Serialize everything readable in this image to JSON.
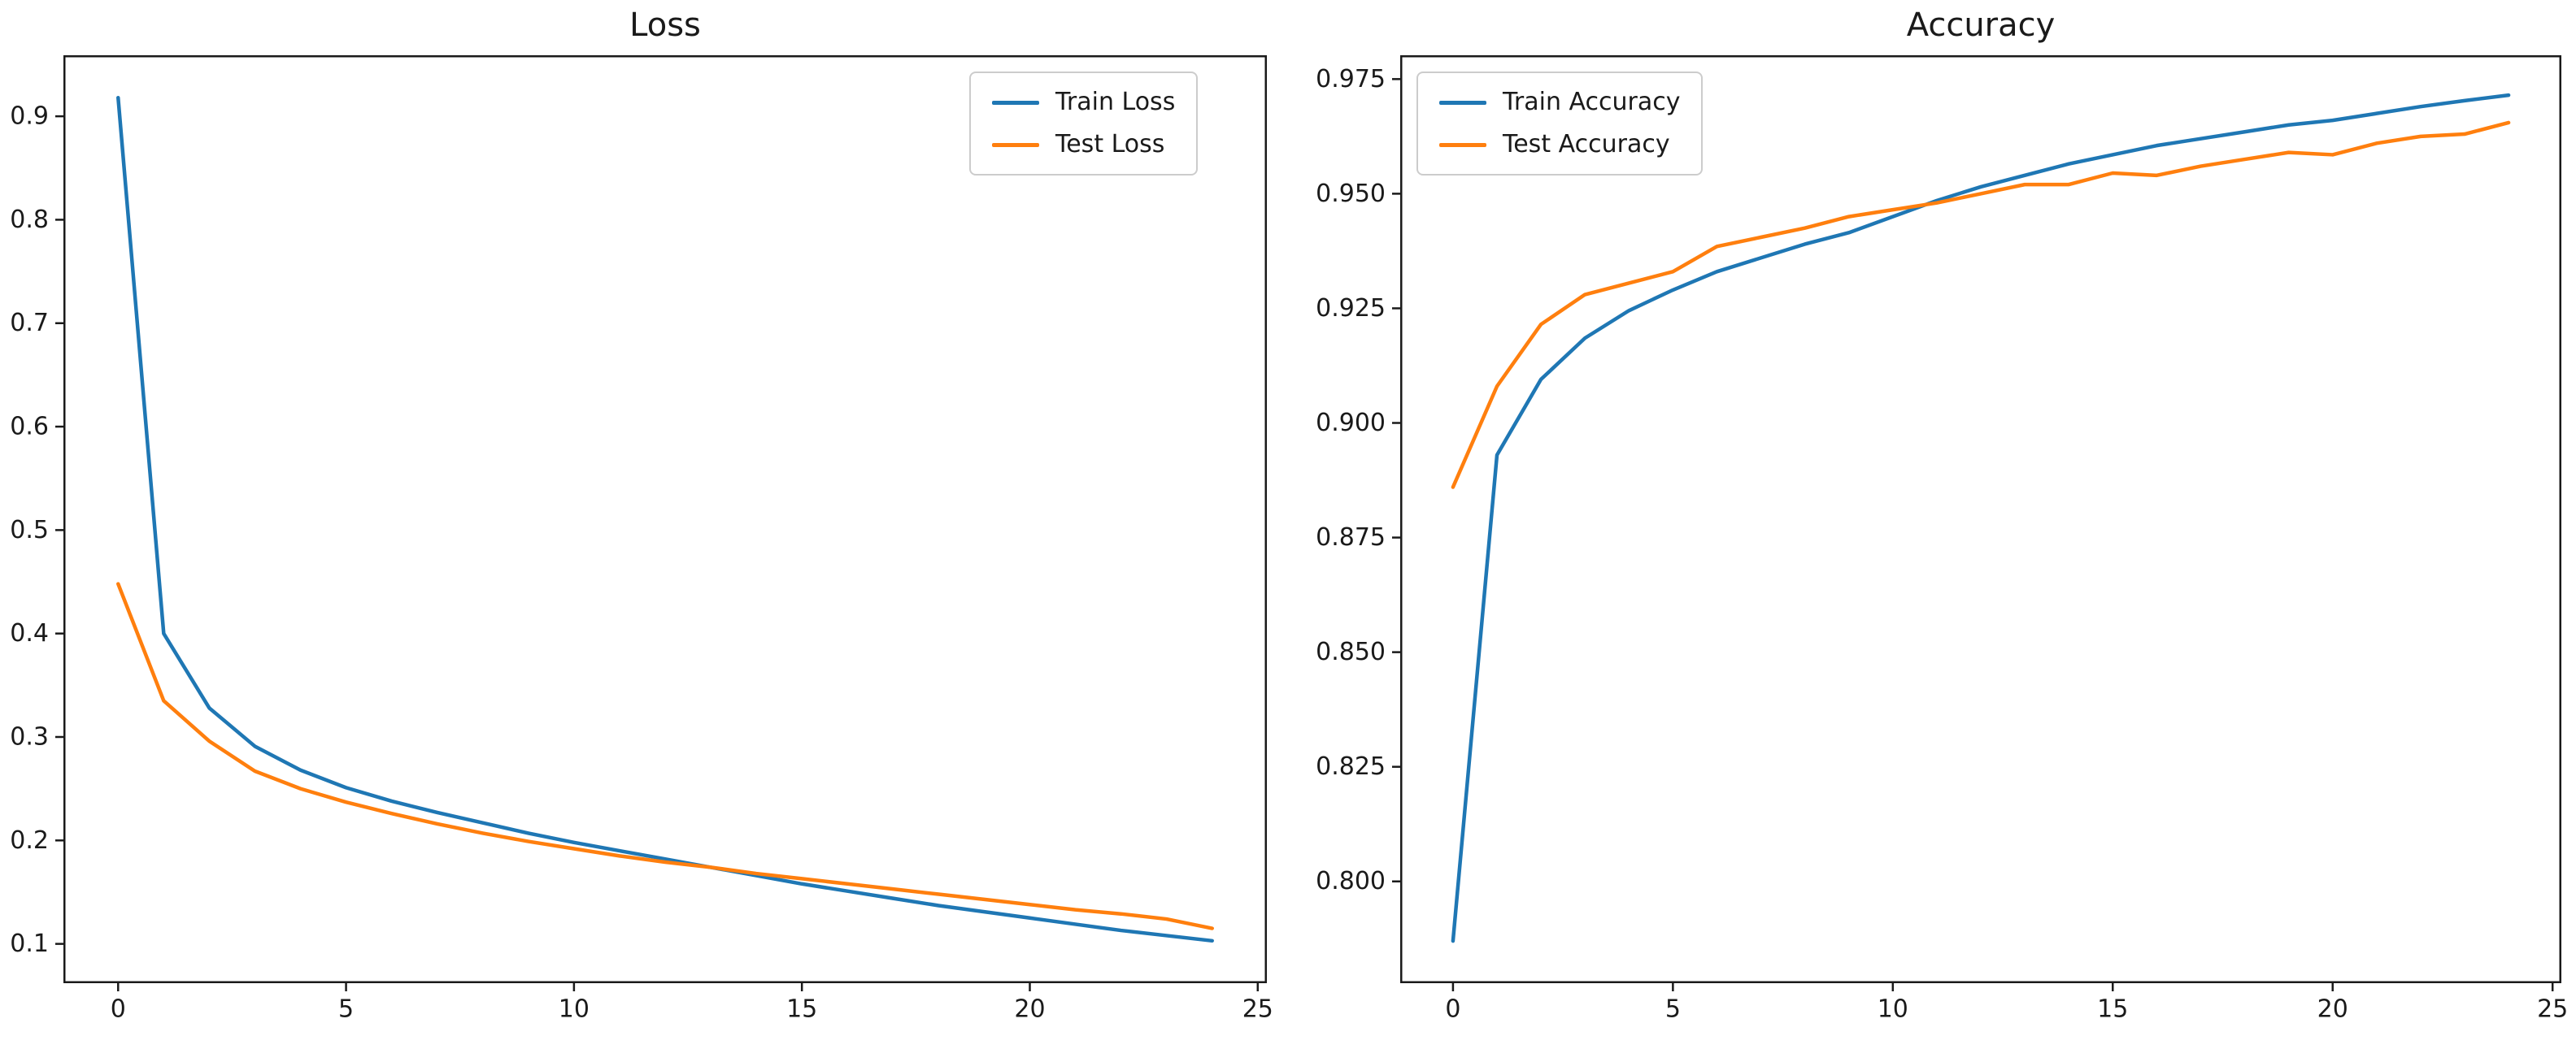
{
  "figure": {
    "background": "#ffffff",
    "text_color": "#1a1a1a",
    "spine_color": "#1a1a1a"
  },
  "chart_data": [
    {
      "type": "line",
      "title": "Loss",
      "xlabel": "",
      "ylabel": "",
      "grid": false,
      "legend_position": "upper right",
      "xlim": [
        -1.2,
        25.2
      ],
      "ylim": [
        0.062,
        0.959
      ],
      "x_ticks": [
        0,
        5,
        10,
        15,
        20,
        25
      ],
      "x_tick_labels": [
        "0",
        "5",
        "10",
        "15",
        "20",
        "25"
      ],
      "y_ticks": [
        0.1,
        0.2,
        0.3,
        0.4,
        0.5,
        0.6,
        0.7,
        0.8,
        0.9
      ],
      "y_tick_labels": [
        "0.1",
        "0.2",
        "0.3",
        "0.4",
        "0.5",
        "0.6",
        "0.7",
        "0.8",
        "0.9"
      ],
      "x": [
        0,
        1,
        2,
        3,
        4,
        5,
        6,
        7,
        8,
        9,
        10,
        11,
        12,
        13,
        14,
        15,
        16,
        17,
        18,
        19,
        20,
        21,
        22,
        23,
        24
      ],
      "series": [
        {
          "name": "Train Loss",
          "color": "#1f77b4",
          "values": [
            0.918,
            0.4,
            0.328,
            0.291,
            0.268,
            0.251,
            0.238,
            0.227,
            0.217,
            0.207,
            0.198,
            0.19,
            0.182,
            0.174,
            0.166,
            0.158,
            0.151,
            0.144,
            0.137,
            0.131,
            0.125,
            0.119,
            0.113,
            0.108,
            0.103
          ]
        },
        {
          "name": "Test Loss",
          "color": "#ff7f0e",
          "values": [
            0.448,
            0.335,
            0.296,
            0.267,
            0.25,
            0.237,
            0.226,
            0.216,
            0.207,
            0.199,
            0.192,
            0.185,
            0.179,
            0.174,
            0.168,
            0.163,
            0.158,
            0.153,
            0.148,
            0.143,
            0.138,
            0.133,
            0.129,
            0.124,
            0.115
          ]
        }
      ]
    },
    {
      "type": "line",
      "title": "Accuracy",
      "xlabel": "",
      "ylabel": "",
      "grid": false,
      "legend_position": "upper left",
      "xlim": [
        -1.2,
        25.2
      ],
      "ylim": [
        0.7778,
        0.9802
      ],
      "x_ticks": [
        0,
        5,
        10,
        15,
        20,
        25
      ],
      "x_tick_labels": [
        "0",
        "5",
        "10",
        "15",
        "20",
        "25"
      ],
      "y_ticks": [
        0.8,
        0.825,
        0.85,
        0.875,
        0.9,
        0.925,
        0.95,
        0.975
      ],
      "y_tick_labels": [
        "0.800",
        "0.825",
        "0.850",
        "0.875",
        "0.900",
        "0.925",
        "0.950",
        "0.975"
      ],
      "x": [
        0,
        1,
        2,
        3,
        4,
        5,
        6,
        7,
        8,
        9,
        10,
        11,
        12,
        13,
        14,
        15,
        16,
        17,
        18,
        19,
        20,
        21,
        22,
        23,
        24
      ],
      "series": [
        {
          "name": "Train Accuracy",
          "color": "#1f77b4",
          "values": [
            0.787,
            0.893,
            0.9095,
            0.9185,
            0.9245,
            0.929,
            0.933,
            0.936,
            0.939,
            0.9415,
            0.945,
            0.9485,
            0.9515,
            0.954,
            0.9565,
            0.9585,
            0.9605,
            0.962,
            0.9635,
            0.965,
            0.966,
            0.9675,
            0.969,
            0.9703,
            0.9715
          ]
        },
        {
          "name": "Test Accuracy",
          "color": "#ff7f0e",
          "values": [
            0.886,
            0.908,
            0.9215,
            0.928,
            0.9305,
            0.933,
            0.9385,
            0.9405,
            0.9425,
            0.945,
            0.9465,
            0.948,
            0.95,
            0.952,
            0.952,
            0.9545,
            0.954,
            0.956,
            0.9575,
            0.959,
            0.9585,
            0.961,
            0.9625,
            0.963,
            0.9655
          ]
        }
      ]
    }
  ]
}
